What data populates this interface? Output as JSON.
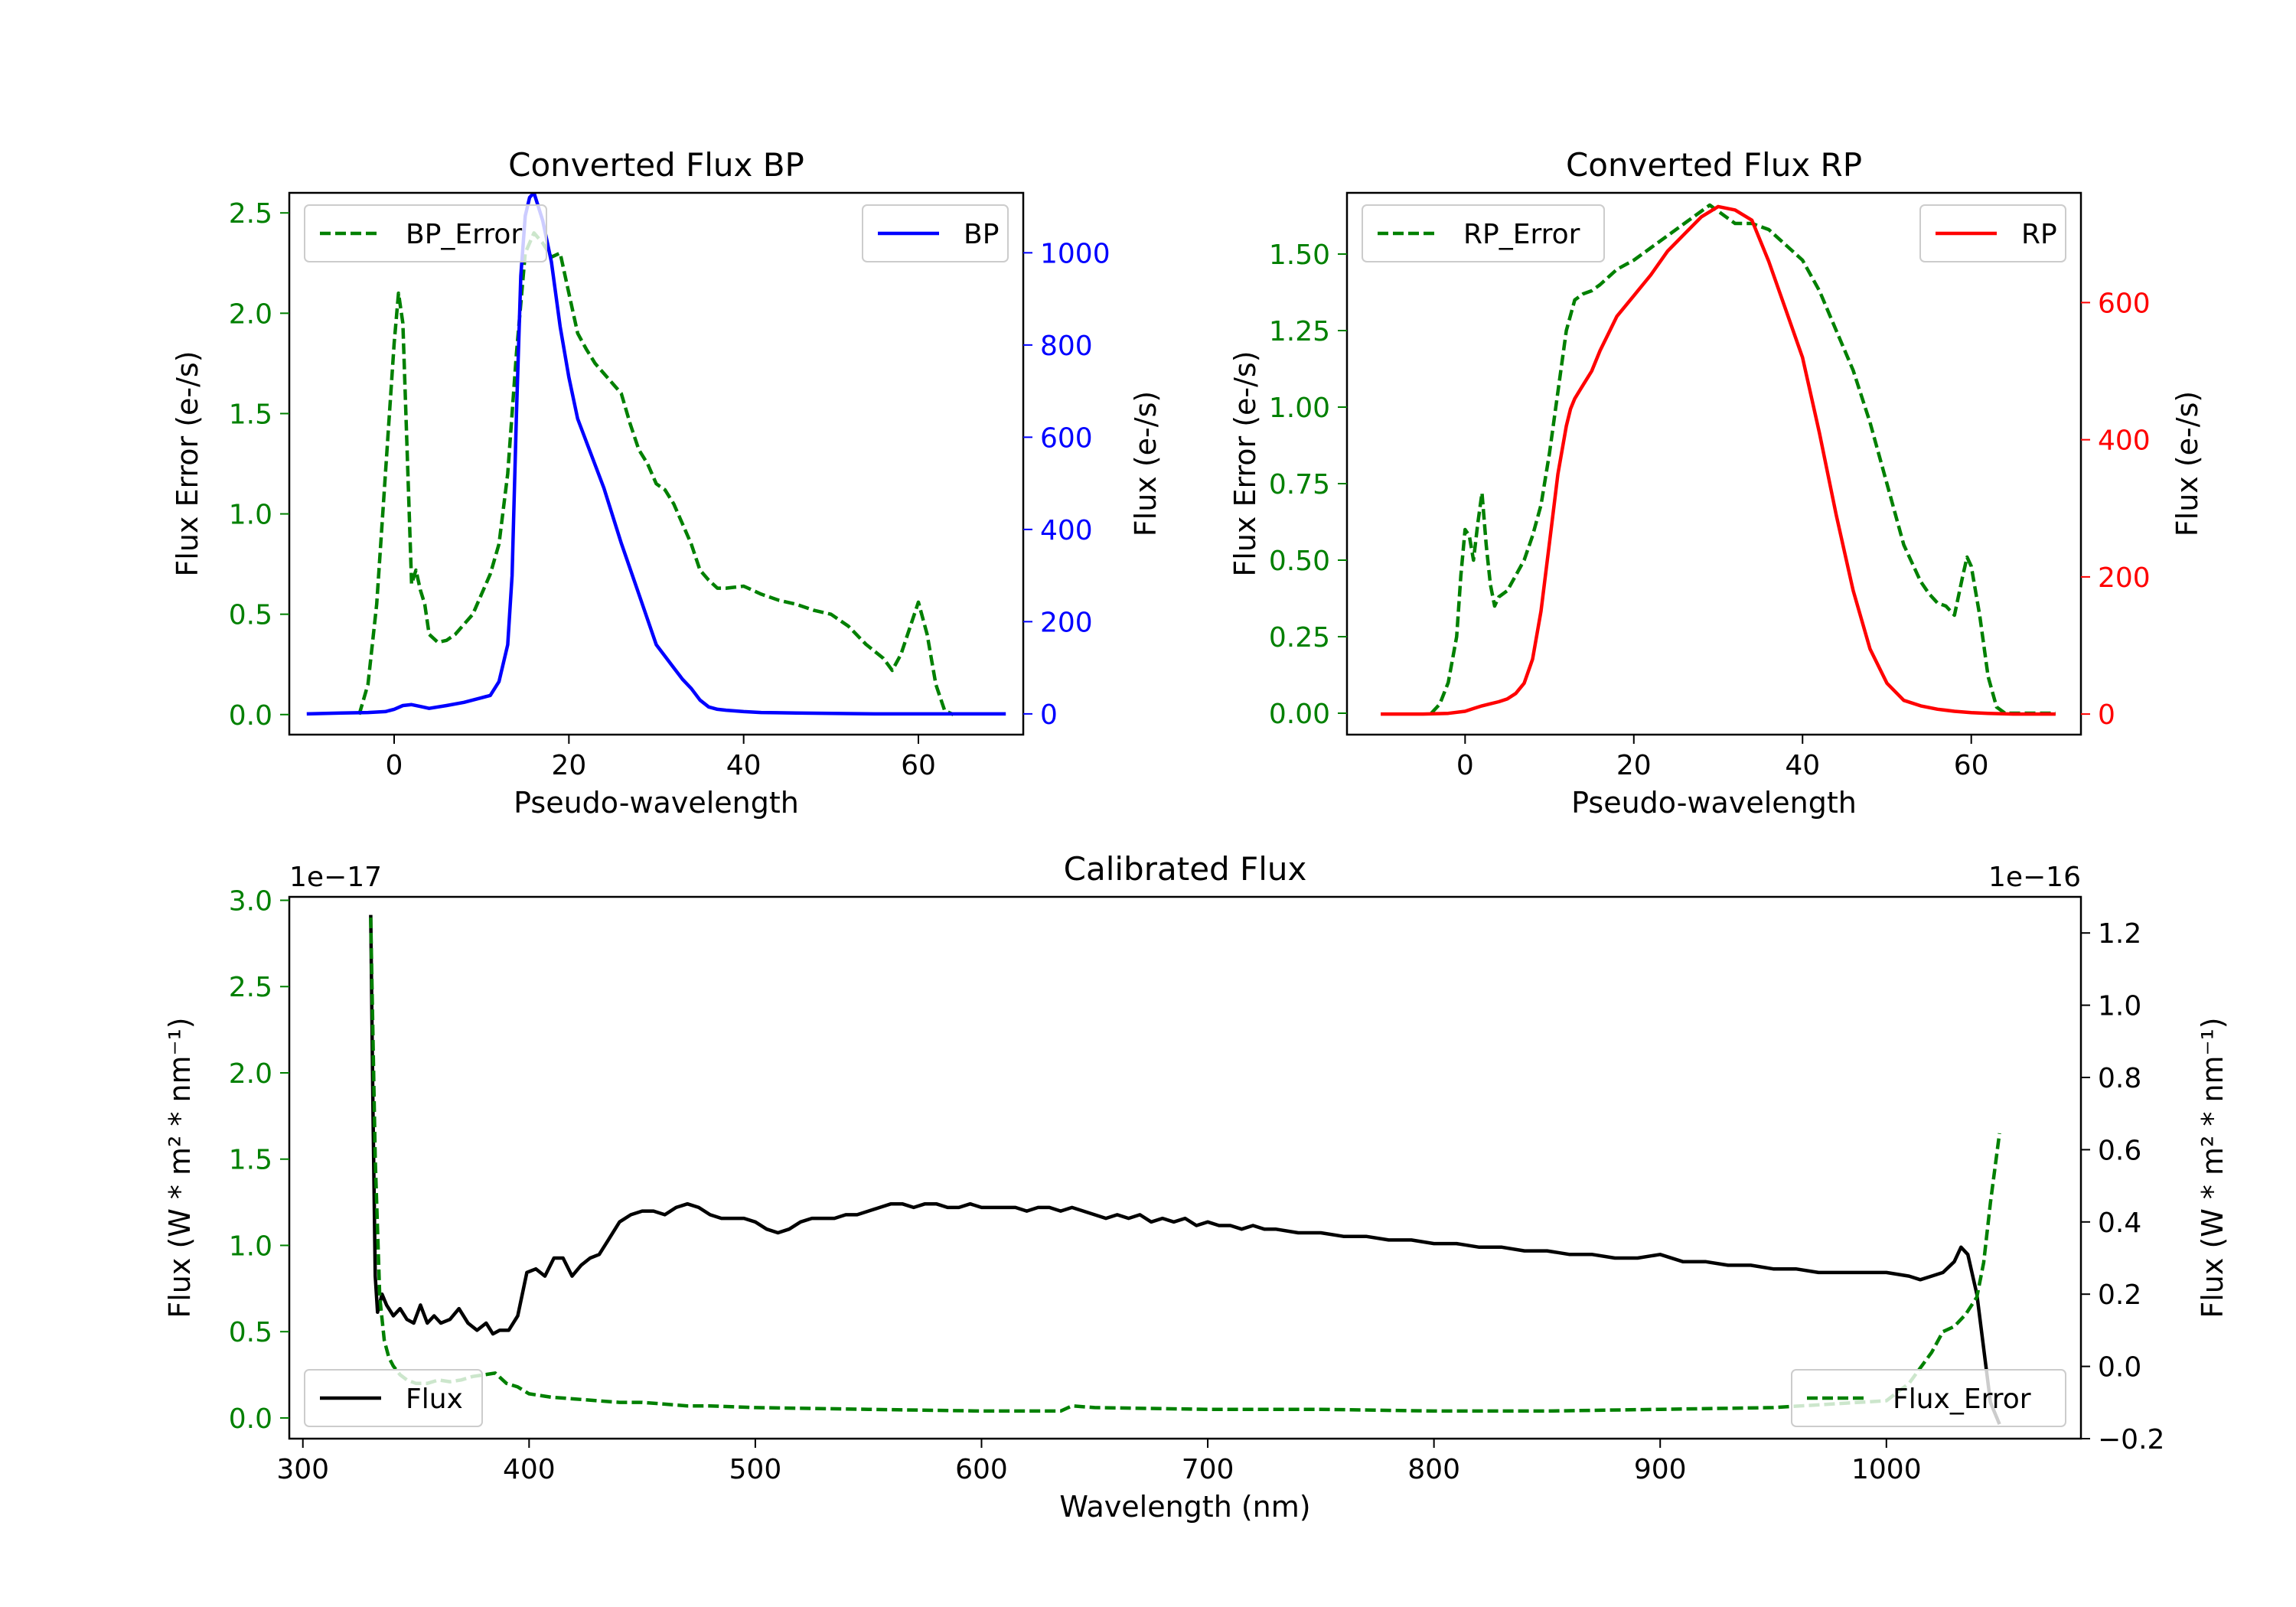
{
  "chart_data": [
    {
      "id": "bp",
      "type": "line",
      "title": "Converted Flux BP",
      "xlabel": "Pseudo-wavelength",
      "ylabel_left": "Flux Error (e-/s)",
      "ylabel_right": "Flux (e-/s)",
      "xlim": [
        -12,
        72
      ],
      "ylim_left": [
        -0.1,
        2.6
      ],
      "ylim_right": [
        -45,
        1130
      ],
      "xticks": [
        0,
        20,
        40,
        60
      ],
      "yticks_left": [
        0.0,
        0.5,
        1.0,
        1.5,
        2.0,
        2.5
      ],
      "yticks_left_labels": [
        "0.0",
        "0.5",
        "1.0",
        "1.5",
        "2.0",
        "2.5"
      ],
      "yticks_right": [
        0,
        200,
        400,
        600,
        800,
        1000
      ],
      "yticks_right_labels": [
        "0",
        "200",
        "400",
        "600",
        "800",
        "1000"
      ],
      "left_axis_color": "#008000",
      "right_axis_color": "#0000ff",
      "legend_left": {
        "label": "BP_Error",
        "location": "upper left",
        "style": "dashed",
        "color": "#008000"
      },
      "legend_right": {
        "label": "BP",
        "location": "upper right",
        "style": "solid",
        "color": "#0000ff"
      },
      "series": [
        {
          "name": "BP_Error",
          "axis": "left",
          "style": "dashed",
          "color": "#008000",
          "x": [
            -4,
            -3,
            -2,
            -1,
            0,
            0.5,
            1,
            1.5,
            2,
            2.5,
            3,
            3.5,
            4,
            5,
            6,
            7,
            8,
            9,
            10,
            11,
            12,
            13,
            14,
            15,
            16,
            17,
            18,
            19,
            20,
            21,
            22,
            23,
            24,
            25,
            26,
            27,
            28,
            29,
            30,
            31,
            32,
            33,
            34,
            35,
            36,
            37,
            38,
            40,
            42,
            44,
            46,
            48,
            50,
            52,
            54,
            56,
            57,
            58,
            59,
            60,
            61,
            62,
            63,
            64
          ],
          "y": [
            0.0,
            0.15,
            0.55,
            1.2,
            1.85,
            2.1,
            1.95,
            1.3,
            0.65,
            0.72,
            0.62,
            0.55,
            0.4,
            0.36,
            0.37,
            0.4,
            0.45,
            0.5,
            0.6,
            0.7,
            0.85,
            1.2,
            1.8,
            2.3,
            2.4,
            2.35,
            2.28,
            2.3,
            2.1,
            1.9,
            1.82,
            1.75,
            1.7,
            1.65,
            1.6,
            1.45,
            1.32,
            1.25,
            1.15,
            1.12,
            1.05,
            0.95,
            0.85,
            0.72,
            0.67,
            0.63,
            0.63,
            0.64,
            0.6,
            0.57,
            0.55,
            0.52,
            0.5,
            0.44,
            0.35,
            0.28,
            0.22,
            0.3,
            0.43,
            0.56,
            0.4,
            0.15,
            0.02,
            0.0
          ]
        },
        {
          "name": "BP",
          "axis": "right",
          "style": "solid",
          "color": "#0000ff",
          "x": [
            -10,
            -6,
            -3,
            -1,
            0,
            1,
            2,
            3,
            4,
            6,
            8,
            10,
            11,
            12,
            13,
            13.5,
            14,
            14.5,
            15,
            15.5,
            16,
            16.5,
            17,
            18,
            19,
            20,
            21,
            22,
            23,
            24,
            26,
            28,
            30,
            32,
            33,
            34,
            35,
            36,
            37,
            38,
            40,
            42,
            46,
            50,
            55,
            60,
            65,
            70
          ],
          "y": [
            0,
            2,
            3,
            5,
            10,
            18,
            20,
            16,
            12,
            18,
            25,
            35,
            40,
            70,
            150,
            300,
            650,
            950,
            1080,
            1120,
            1130,
            1100,
            1070,
            980,
            840,
            730,
            640,
            590,
            540,
            490,
            370,
            260,
            150,
            100,
            75,
            55,
            30,
            15,
            10,
            8,
            5,
            3,
            2,
            1,
            0,
            0,
            0,
            0
          ]
        }
      ]
    },
    {
      "id": "rp",
      "type": "line",
      "title": "Converted Flux RP",
      "xlabel": "Pseudo-wavelength",
      "ylabel_left": "Flux Error (e-/s)",
      "ylabel_right": "Flux (e-/s)",
      "xlim": [
        -14,
        73
      ],
      "ylim_left": [
        -0.07,
        1.7
      ],
      "ylim_right": [
        -30,
        760
      ],
      "xticks": [
        0,
        20,
        40,
        60
      ],
      "yticks_left": [
        0.0,
        0.25,
        0.5,
        0.75,
        1.0,
        1.25,
        1.5
      ],
      "yticks_left_labels": [
        "0.00",
        "0.25",
        "0.50",
        "0.75",
        "1.00",
        "1.25",
        "1.50"
      ],
      "yticks_right": [
        0,
        200,
        400,
        600
      ],
      "yticks_right_labels": [
        "0",
        "200",
        "400",
        "600"
      ],
      "left_axis_color": "#008000",
      "right_axis_color": "#ff0000",
      "legend_left": {
        "label": "RP_Error",
        "location": "upper left",
        "style": "dashed",
        "color": "#008000"
      },
      "legend_right": {
        "label": "RP",
        "location": "upper right",
        "style": "solid",
        "color": "#ff0000"
      },
      "series": [
        {
          "name": "RP_Error",
          "axis": "left",
          "style": "dashed",
          "color": "#008000",
          "x": [
            -4,
            -3,
            -2,
            -1,
            -0.5,
            0,
            0.5,
            1,
            1.5,
            2,
            2.5,
            3,
            3.5,
            4,
            5,
            6,
            7,
            8,
            9,
            10,
            11,
            12,
            13,
            14,
            15,
            16,
            18,
            20,
            22,
            24,
            26,
            28,
            29,
            30,
            32,
            34,
            36,
            38,
            40,
            42,
            44,
            46,
            48,
            50,
            52,
            54,
            55,
            56,
            57,
            58,
            59,
            59.5,
            60,
            61,
            62,
            63,
            64,
            66,
            70
          ],
          "y": [
            0.0,
            0.03,
            0.1,
            0.25,
            0.45,
            0.6,
            0.58,
            0.5,
            0.62,
            0.72,
            0.55,
            0.42,
            0.35,
            0.38,
            0.4,
            0.45,
            0.5,
            0.58,
            0.68,
            0.85,
            1.05,
            1.25,
            1.35,
            1.37,
            1.38,
            1.4,
            1.45,
            1.48,
            1.52,
            1.56,
            1.6,
            1.64,
            1.66,
            1.64,
            1.6,
            1.6,
            1.58,
            1.53,
            1.48,
            1.38,
            1.25,
            1.12,
            0.95,
            0.75,
            0.55,
            0.43,
            0.39,
            0.36,
            0.35,
            0.32,
            0.45,
            0.51,
            0.48,
            0.32,
            0.12,
            0.02,
            0.0,
            0.0,
            0.0
          ]
        },
        {
          "name": "RP",
          "axis": "right",
          "style": "solid",
          "color": "#ff0000",
          "x": [
            -10,
            -5,
            -2,
            0,
            1,
            2,
            3,
            4,
            5,
            6,
            7,
            8,
            9,
            10,
            11,
            12,
            12.5,
            13,
            14,
            15,
            16,
            17,
            18,
            20,
            22,
            24,
            26,
            28,
            30,
            32,
            34,
            36,
            38,
            40,
            42,
            44,
            46,
            48,
            50,
            52,
            54,
            56,
            58,
            60,
            62,
            65,
            70
          ],
          "y": [
            0,
            0,
            1,
            4,
            8,
            12,
            15,
            18,
            22,
            30,
            45,
            80,
            150,
            250,
            350,
            420,
            445,
            460,
            480,
            500,
            530,
            555,
            580,
            610,
            640,
            675,
            700,
            725,
            740,
            735,
            720,
            660,
            590,
            520,
            410,
            290,
            180,
            95,
            45,
            20,
            12,
            7,
            4,
            2,
            1,
            0,
            0
          ]
        }
      ]
    },
    {
      "id": "calibrated",
      "type": "line",
      "title": "Calibrated Flux",
      "xlabel": "Wavelength (nm)",
      "ylabel_left": "Flux (W * m² * nm⁻¹)",
      "ylabel_right": "Flux (W * m² * nm⁻¹)",
      "offset_left": "1e−17",
      "offset_right": "1e−16",
      "xlim": [
        294,
        1086
      ],
      "ylim_left": [
        -0.12,
        3.02
      ],
      "ylim_right": [
        -0.2,
        1.3
      ],
      "xticks": [
        300,
        400,
        500,
        600,
        700,
        800,
        900,
        1000
      ],
      "yticks_left": [
        0.0,
        0.5,
        1.0,
        1.5,
        2.0,
        2.5,
        3.0
      ],
      "yticks_left_labels": [
        "0.0",
        "0.5",
        "1.0",
        "1.5",
        "2.0",
        "2.5",
        "3.0"
      ],
      "yticks_right": [
        -0.2,
        0.0,
        0.2,
        0.4,
        0.6,
        0.8,
        1.0,
        1.2
      ],
      "yticks_right_labels": [
        "−0.2",
        "0.0",
        "0.2",
        "0.4",
        "0.6",
        "0.8",
        "1.0",
        "1.2"
      ],
      "left_axis_color": "#008000",
      "right_axis_color": "#000000",
      "legend_left": {
        "label": "Flux",
        "location": "lower left",
        "style": "solid",
        "color": "#000000"
      },
      "legend_right": {
        "label": "Flux_Error",
        "location": "lower right",
        "style": "dashed",
        "color": "#008000"
      },
      "series": [
        {
          "name": "Flux",
          "axis": "right",
          "style": "solid",
          "color": "#000000",
          "x": [
            330,
            331,
            332,
            333,
            335,
            337,
            340,
            343,
            346,
            349,
            352,
            355,
            358,
            361,
            365,
            369,
            373,
            377,
            381,
            384,
            387,
            391,
            395,
            399,
            403,
            407,
            411,
            415,
            419,
            423,
            427,
            431,
            435,
            440,
            445,
            450,
            455,
            460,
            465,
            470,
            475,
            480,
            485,
            490,
            495,
            500,
            505,
            510,
            515,
            520,
            525,
            530,
            535,
            540,
            545,
            550,
            555,
            560,
            565,
            570,
            575,
            580,
            585,
            590,
            595,
            600,
            605,
            610,
            615,
            620,
            625,
            630,
            635,
            640,
            645,
            650,
            655,
            660,
            665,
            670,
            675,
            680,
            685,
            690,
            695,
            700,
            705,
            710,
            715,
            720,
            725,
            730,
            740,
            750,
            760,
            770,
            780,
            790,
            800,
            810,
            820,
            830,
            840,
            850,
            860,
            870,
            880,
            890,
            900,
            910,
            920,
            930,
            940,
            950,
            960,
            970,
            980,
            990,
            1000,
            1010,
            1015,
            1020,
            1025,
            1030,
            1033,
            1036,
            1040,
            1043,
            1046,
            1050
          ],
          "y": [
            1.25,
            0.7,
            0.25,
            0.15,
            0.2,
            0.17,
            0.14,
            0.16,
            0.13,
            0.12,
            0.17,
            0.12,
            0.14,
            0.12,
            0.13,
            0.16,
            0.12,
            0.1,
            0.12,
            0.09,
            0.1,
            0.1,
            0.14,
            0.26,
            0.27,
            0.25,
            0.3,
            0.3,
            0.25,
            0.28,
            0.3,
            0.31,
            0.35,
            0.4,
            0.42,
            0.43,
            0.43,
            0.42,
            0.44,
            0.45,
            0.44,
            0.42,
            0.41,
            0.41,
            0.41,
            0.4,
            0.38,
            0.37,
            0.38,
            0.4,
            0.41,
            0.41,
            0.41,
            0.42,
            0.42,
            0.43,
            0.44,
            0.45,
            0.45,
            0.44,
            0.45,
            0.45,
            0.44,
            0.44,
            0.45,
            0.44,
            0.44,
            0.44,
            0.44,
            0.43,
            0.44,
            0.44,
            0.43,
            0.44,
            0.43,
            0.42,
            0.41,
            0.42,
            0.41,
            0.42,
            0.4,
            0.41,
            0.4,
            0.41,
            0.39,
            0.4,
            0.39,
            0.39,
            0.38,
            0.39,
            0.38,
            0.38,
            0.37,
            0.37,
            0.36,
            0.36,
            0.35,
            0.35,
            0.34,
            0.34,
            0.33,
            0.33,
            0.32,
            0.32,
            0.31,
            0.31,
            0.3,
            0.3,
            0.31,
            0.29,
            0.29,
            0.28,
            0.28,
            0.27,
            0.27,
            0.26,
            0.26,
            0.26,
            0.26,
            0.25,
            0.24,
            0.25,
            0.26,
            0.29,
            0.33,
            0.31,
            0.2,
            0.05,
            -0.1,
            -0.16
          ]
        },
        {
          "name": "Flux_Error",
          "axis": "left",
          "style": "dashed",
          "color": "#008000",
          "x": [
            330,
            332,
            334,
            336,
            338,
            340,
            343,
            346,
            350,
            355,
            360,
            365,
            370,
            375,
            380,
            385,
            390,
            395,
            400,
            410,
            420,
            430,
            440,
            450,
            460,
            470,
            480,
            500,
            550,
            600,
            635,
            640,
            650,
            700,
            750,
            800,
            850,
            900,
            950,
            1000,
            1010,
            1020,
            1025,
            1030,
            1035,
            1040,
            1043,
            1046,
            1050
          ],
          "y": [
            2.9,
            1.5,
            0.7,
            0.45,
            0.35,
            0.3,
            0.25,
            0.22,
            0.2,
            0.2,
            0.22,
            0.21,
            0.22,
            0.24,
            0.25,
            0.26,
            0.2,
            0.18,
            0.14,
            0.12,
            0.11,
            0.1,
            0.09,
            0.09,
            0.08,
            0.07,
            0.07,
            0.06,
            0.05,
            0.04,
            0.04,
            0.07,
            0.06,
            0.05,
            0.05,
            0.04,
            0.04,
            0.05,
            0.06,
            0.1,
            0.2,
            0.38,
            0.5,
            0.53,
            0.6,
            0.7,
            0.9,
            1.25,
            1.65
          ]
        }
      ]
    }
  ]
}
